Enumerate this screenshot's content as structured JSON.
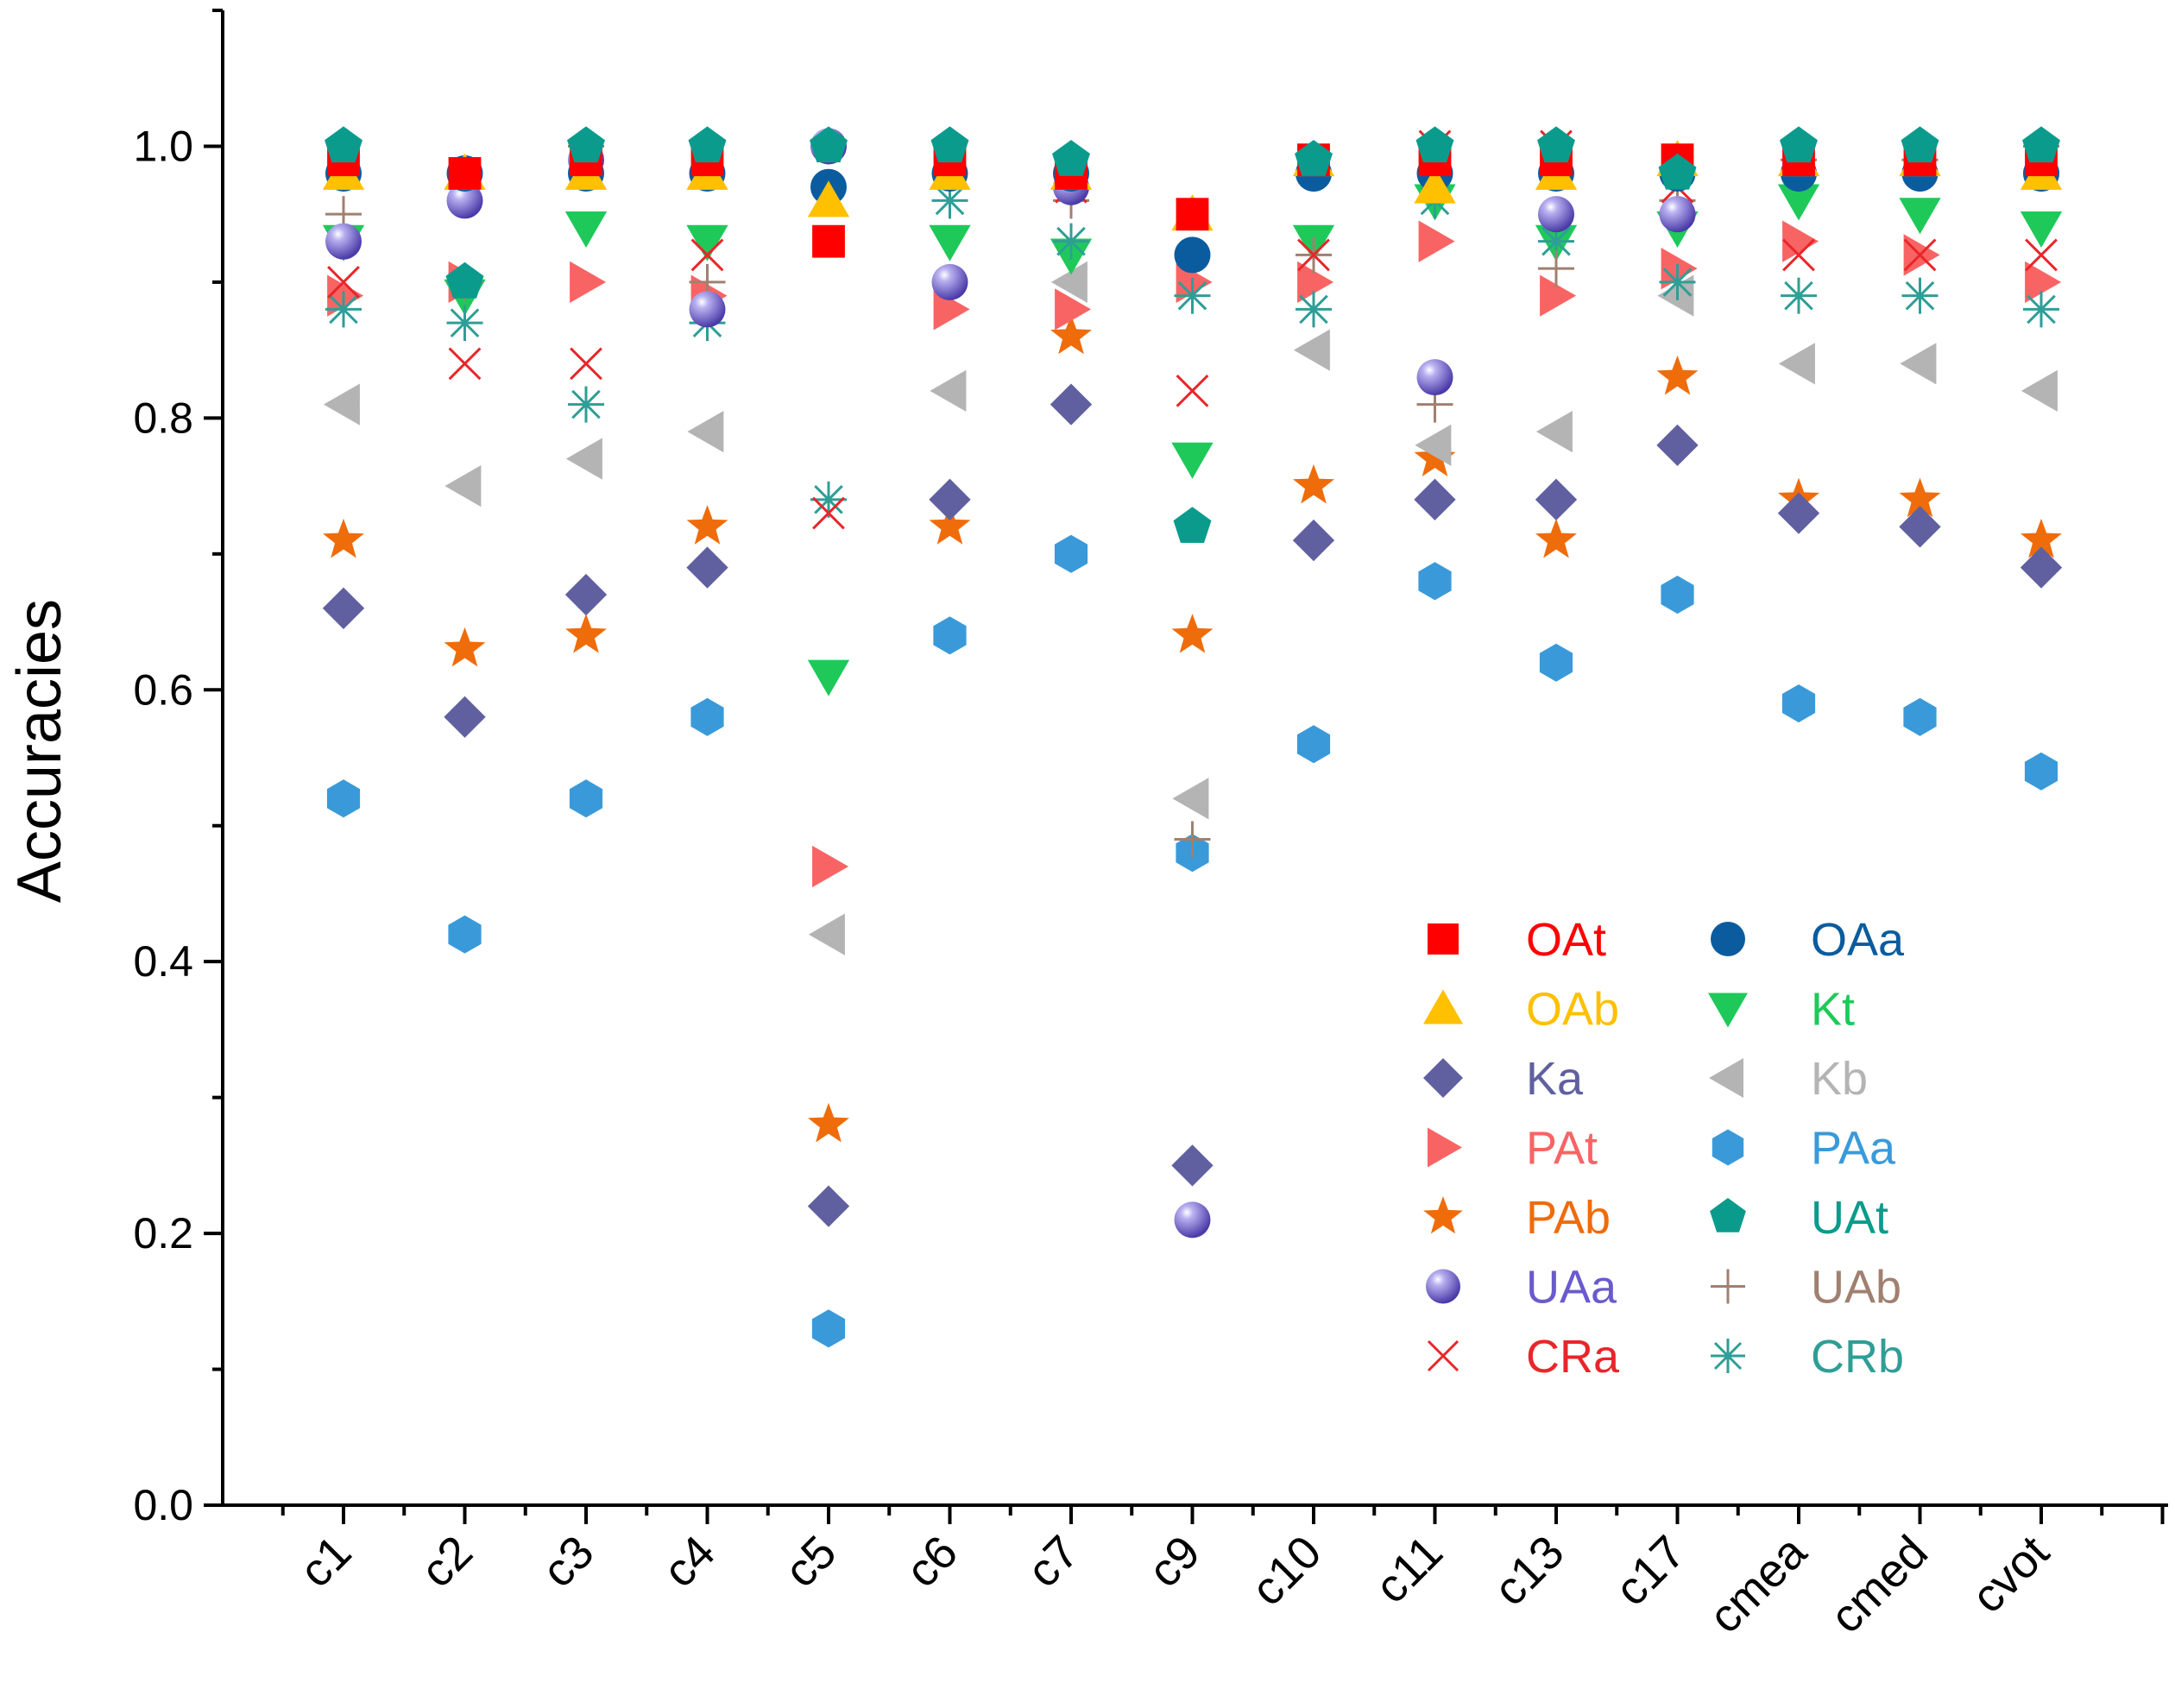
{
  "chart_data": {
    "type": "scatter",
    "title": "",
    "xlabel": "",
    "ylabel": "Accuracies",
    "ylim": [
      0.0,
      1.1
    ],
    "yticks": [
      0.0,
      0.2,
      0.4,
      0.6,
      0.8,
      1.0
    ],
    "ytick_labels": [
      "0.0",
      "0.2",
      "0.4",
      "0.6",
      "0.8",
      "1.0"
    ],
    "categories": [
      "c1",
      "c2",
      "c3",
      "c4",
      "c5",
      "c6",
      "c7",
      "c9",
      "c10",
      "c11",
      "c13",
      "c17",
      "cmea",
      "cmed",
      "cvot"
    ],
    "legend_position": "lower-right",
    "series": [
      {
        "name": "OAt",
        "marker": "square",
        "color": "#ff0000",
        "values": [
          0.99,
          0.98,
          0.99,
          0.99,
          0.93,
          0.99,
          0.98,
          0.95,
          0.99,
          0.99,
          0.99,
          0.99,
          0.99,
          0.99,
          0.99
        ]
      },
      {
        "name": "OAa",
        "marker": "circle",
        "color": "#0b5c9e",
        "values": [
          0.98,
          0.98,
          0.98,
          0.98,
          0.97,
          0.98,
          0.98,
          0.92,
          0.98,
          0.98,
          0.98,
          0.98,
          0.98,
          0.98,
          0.98
        ]
      },
      {
        "name": "OAb",
        "marker": "triangle-up",
        "color": "#ffc000",
        "values": [
          0.98,
          0.98,
          0.98,
          0.98,
          0.96,
          0.98,
          0.98,
          0.95,
          0.99,
          0.97,
          0.98,
          0.99,
          0.99,
          0.99,
          0.98
        ]
      },
      {
        "name": "Kt",
        "marker": "triangle-down",
        "color": "#1ec95a",
        "values": [
          0.93,
          0.89,
          0.94,
          0.93,
          0.61,
          0.93,
          0.92,
          0.77,
          0.93,
          0.96,
          0.93,
          0.94,
          0.96,
          0.95,
          0.94
        ]
      },
      {
        "name": "Ka",
        "marker": "diamond",
        "color": "#6060a0",
        "values": [
          0.66,
          0.58,
          0.67,
          0.69,
          0.22,
          0.74,
          0.81,
          0.25,
          0.71,
          0.74,
          0.74,
          0.78,
          0.73,
          0.72,
          0.69
        ]
      },
      {
        "name": "Kb",
        "marker": "triangle-left",
        "color": "#b4b4b4",
        "values": [
          0.81,
          0.75,
          0.77,
          0.79,
          0.42,
          0.82,
          0.9,
          0.52,
          0.85,
          0.78,
          0.79,
          0.89,
          0.84,
          0.84,
          0.82
        ]
      },
      {
        "name": "PAt",
        "marker": "triangle-right",
        "color": "#f86464",
        "values": [
          0.89,
          0.9,
          0.9,
          0.89,
          0.47,
          0.88,
          0.88,
          0.9,
          0.9,
          0.93,
          0.89,
          0.91,
          0.93,
          0.92,
          0.9
        ]
      },
      {
        "name": "PAa",
        "marker": "hexagon",
        "color": "#3a9ad9",
        "values": [
          0.52,
          0.42,
          0.52,
          0.58,
          0.13,
          0.64,
          0.7,
          0.48,
          0.56,
          0.68,
          0.62,
          0.67,
          0.59,
          0.58,
          0.54
        ]
      },
      {
        "name": "PAb",
        "marker": "star",
        "color": "#ef6c0b",
        "values": [
          0.71,
          0.63,
          0.64,
          0.72,
          0.28,
          0.72,
          0.86,
          0.64,
          0.75,
          0.77,
          0.71,
          0.83,
          0.74,
          0.74,
          0.71
        ]
      },
      {
        "name": "UAt",
        "marker": "pentagon",
        "color": "#0b9b8c",
        "values": [
          1.0,
          0.9,
          1.0,
          1.0,
          1.0,
          1.0,
          0.99,
          0.72,
          0.99,
          1.0,
          1.0,
          0.98,
          1.0,
          1.0,
          1.0
        ]
      },
      {
        "name": "UAa",
        "marker": "sphere",
        "color": "#6a5acd",
        "values": [
          0.93,
          0.96,
          0.99,
          0.88,
          1.0,
          0.9,
          0.97,
          0.21,
          0.98,
          0.83,
          0.95,
          0.95,
          0.98,
          0.98,
          0.98
        ]
      },
      {
        "name": "UAb",
        "marker": "plus",
        "color": "#a08070",
        "values": [
          0.95,
          0.9,
          1.0,
          0.9,
          1.0,
          0.98,
          0.96,
          0.49,
          0.92,
          0.81,
          0.91,
          0.96,
          0.99,
          0.99,
          1.0
        ]
      },
      {
        "name": "CRa",
        "marker": "x",
        "color": "#e8262a",
        "values": [
          0.9,
          0.84,
          0.84,
          0.92,
          0.73,
          0.98,
          0.97,
          0.82,
          0.92,
          1.0,
          1.0,
          0.97,
          0.92,
          0.92,
          0.92
        ]
      },
      {
        "name": "CRb",
        "marker": "asterisk",
        "color": "#2e9e96",
        "values": [
          0.88,
          0.87,
          0.81,
          0.87,
          0.74,
          0.96,
          0.93,
          0.89,
          0.88,
          0.96,
          0.93,
          0.9,
          0.89,
          0.89,
          0.88
        ]
      }
    ],
    "legend_order": [
      "OAt",
      "OAa",
      "OAb",
      "Kt",
      "Ka",
      "Kb",
      "PAt",
      "PAa",
      "PAb",
      "UAt",
      "UAa",
      "UAb",
      "CRa",
      "CRb"
    ]
  }
}
